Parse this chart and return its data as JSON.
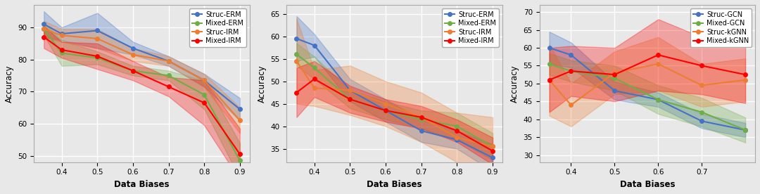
{
  "x": [
    0.35,
    0.4,
    0.5,
    0.6,
    0.7,
    0.8,
    0.9
  ],
  "plot1": {
    "xlabel": "Data Biases",
    "ylabel": "Accuracy",
    "ylim": [
      48,
      97
    ],
    "yticks": [
      50,
      60,
      70,
      80,
      90
    ],
    "xticks": [
      0.4,
      0.5,
      0.6,
      0.7,
      0.8,
      0.9
    ],
    "series": [
      {
        "label": "Struc-ERM",
        "color": "#4472C4",
        "mean": [
          91.0,
          88.0,
          89.0,
          83.5,
          79.5,
          73.5,
          64.5
        ],
        "std": [
          4.0,
          2.0,
          5.5,
          2.0,
          1.5,
          2.0,
          3.5
        ]
      },
      {
        "label": "Mixed-ERM",
        "color": "#70AD47",
        "mean": [
          89.5,
          82.0,
          80.5,
          76.5,
          75.0,
          69.0,
          48.5
        ],
        "std": [
          2.0,
          4.0,
          2.0,
          1.5,
          1.5,
          4.5,
          5.5
        ]
      },
      {
        "label": "Struc-IRM",
        "color": "#ED7D31",
        "mean": [
          89.5,
          87.5,
          86.5,
          81.5,
          79.5,
          73.5,
          61.0
        ],
        "std": [
          2.5,
          2.0,
          3.0,
          2.0,
          1.5,
          2.0,
          4.0
        ]
      },
      {
        "label": "Mixed-IRM",
        "color": "#FF0000",
        "mean": [
          87.0,
          83.0,
          81.0,
          76.5,
          71.5,
          66.5,
          50.5
        ],
        "std": [
          3.5,
          2.5,
          4.0,
          3.0,
          3.0,
          7.0,
          8.0
        ]
      }
    ]
  },
  "plot2": {
    "xlabel": "Data Biases",
    "ylabel": "Accuracy",
    "ylim": [
      32,
      67
    ],
    "yticks": [
      35,
      40,
      45,
      50,
      55,
      60,
      65
    ],
    "xticks": [
      0.4,
      0.5,
      0.6,
      0.7,
      0.8,
      0.9
    ],
    "series": [
      {
        "label": "Struc-ERM",
        "color": "#4472C4",
        "mean": [
          59.5,
          58.0,
          48.0,
          43.5,
          39.0,
          37.0,
          33.0
        ],
        "std": [
          5.0,
          2.5,
          2.5,
          2.5,
          2.5,
          2.0,
          3.0
        ]
      },
      {
        "label": "Mixed-ERM",
        "color": "#70AD47",
        "mean": [
          56.0,
          53.0,
          46.0,
          43.5,
          41.5,
          40.0,
          35.5
        ],
        "std": [
          2.5,
          2.5,
          2.0,
          2.0,
          2.0,
          3.0,
          3.0
        ]
      },
      {
        "label": "Struc-IRM",
        "color": "#ED7D31",
        "mean": [
          54.5,
          48.5,
          48.0,
          45.0,
          42.0,
          37.5,
          35.5
        ],
        "std": [
          9.5,
          4.0,
          5.5,
          5.0,
          5.5,
          5.5,
          6.5
        ]
      },
      {
        "label": "Mixed-IRM",
        "color": "#FF0000",
        "mean": [
          47.5,
          50.5,
          46.0,
          43.5,
          42.0,
          39.0,
          34.5
        ],
        "std": [
          5.5,
          4.0,
          3.0,
          2.5,
          2.5,
          2.5,
          3.0
        ]
      }
    ]
  },
  "plot3": {
    "xlabel": "Data Biases",
    "ylabel": "Accuracy",
    "ylim": [
      28,
      72
    ],
    "yticks": [
      30,
      35,
      40,
      45,
      50,
      55,
      60,
      65,
      70
    ],
    "x": [
      0.35,
      0.4,
      0.5,
      0.6,
      0.7,
      0.8
    ],
    "xticks": [
      0.4,
      0.5,
      0.6,
      0.7
    ],
    "series": [
      {
        "label": "Struc-GCN",
        "color": "#4472C4",
        "mean": [
          60.0,
          58.0,
          48.0,
          45.5,
          39.5,
          37.0
        ],
        "std": [
          4.5,
          3.5,
          2.5,
          2.0,
          2.0,
          2.0
        ]
      },
      {
        "label": "Mixed-GCN",
        "color": "#70AD47",
        "mean": [
          55.5,
          53.5,
          51.5,
          45.5,
          42.0,
          37.0
        ],
        "std": [
          3.0,
          3.0,
          3.5,
          4.0,
          4.0,
          3.5
        ]
      },
      {
        "label": "Struc-kGNN",
        "color": "#ED7D31",
        "mean": [
          51.0,
          44.0,
          53.0,
          55.5,
          49.5,
          51.0
        ],
        "std": [
          10.0,
          6.0,
          6.0,
          7.5,
          6.0,
          6.0
        ]
      },
      {
        "label": "Mixed-kGNN",
        "color": "#FF0000",
        "mean": [
          51.0,
          53.5,
          52.5,
          58.0,
          55.0,
          52.5
        ],
        "std": [
          9.0,
          7.0,
          7.5,
          10.0,
          8.0,
          8.0
        ]
      }
    ]
  },
  "bg_color": "#e8e8e8",
  "grid_color": "white",
  "legend_fontsize": 7.0,
  "axis_fontsize": 8.5,
  "tick_fontsize": 7.5,
  "line_width": 1.5,
  "marker_size": 4,
  "alpha_fill": 0.3
}
